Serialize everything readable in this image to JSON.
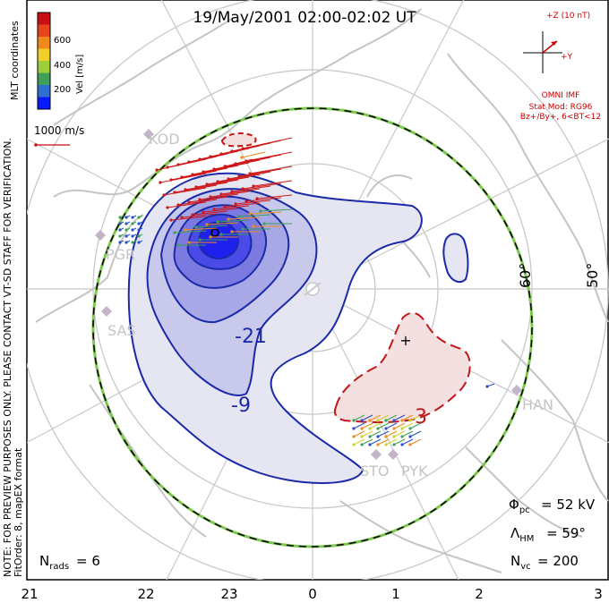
{
  "title": "19/May/2001 02:00-02:02 UT",
  "colorbar": {
    "label": "Vel [m/s]",
    "coord_label": "MLT coordinates",
    "ticks": [
      "600",
      "400",
      "200"
    ],
    "colors": [
      "#0a1aff",
      "#2e6fd0",
      "#3fa05a",
      "#9ccf3a",
      "#f2d02a",
      "#f08a1e",
      "#e8441c",
      "#c80f14"
    ]
  },
  "scale_vector_label": "1000 m/s",
  "imf": {
    "bz_label": "+Z (10 nT)",
    "by_label": "+Y",
    "source": "OMNI IMF",
    "stat_model": "Stat Mod: RG96",
    "condition": "Bz+/By+, 6<BT<12"
  },
  "radars": [
    "KOD",
    "PGR",
    "SAS",
    "STO",
    "PYK",
    "HAN"
  ],
  "latitude_labels": [
    "60°",
    "50°"
  ],
  "contour_labels": [
    "-21",
    "-9",
    "3"
  ],
  "mlt_labels": [
    "21",
    "22",
    "23",
    "0",
    "1",
    "2",
    "3"
  ],
  "notes": {
    "line1": "NOTE: FOR PREVIEW PURPOSES ONLY. PLEASE CONTACT VT-SD STAFF FOR VERIFICATION.",
    "line2": "FitOrder: 8, mapEX format"
  },
  "stats": {
    "phi_pc": "= 52 kV",
    "lambda_hm": "= 59°",
    "n_vc": "= 200",
    "n_rads": "= 6"
  },
  "colors": {
    "negative_fill_light": "#e6e6f2",
    "negative_fill_dark": "#2020ee",
    "negative_contour": "#1a2aa8",
    "positive_fill": "#f4e0e0",
    "positive_contour": "#c01818",
    "land": "#c4c4c4",
    "grid": "#c8c8c8",
    "boundary": "#7ec850"
  }
}
